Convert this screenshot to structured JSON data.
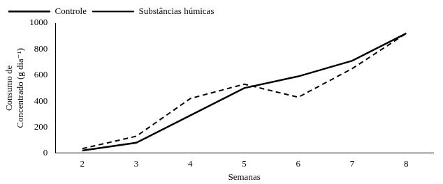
{
  "chart_data": {
    "type": "line",
    "x_label": "Semanas",
    "y_label": [
      "Consumo de",
      "Concentrado (g dia⁻¹)"
    ],
    "categories": [
      "2",
      "3",
      "4",
      "5",
      "6",
      "7",
      "8"
    ],
    "series": [
      {
        "name": "Controle",
        "color": "#000000",
        "line_style": "solid",
        "values": [
          20,
          80,
          290,
          500,
          590,
          710,
          920
        ]
      },
      {
        "name": "Substâncias húmicas",
        "color": "#000000",
        "line_style": "dashed",
        "values": [
          35,
          130,
          420,
          530,
          430,
          650,
          920
        ]
      }
    ],
    "ylim": [
      0,
      1000
    ],
    "yticks": [
      0,
      200,
      400,
      600,
      800,
      1000
    ],
    "grid": false,
    "legend": "top-left"
  }
}
